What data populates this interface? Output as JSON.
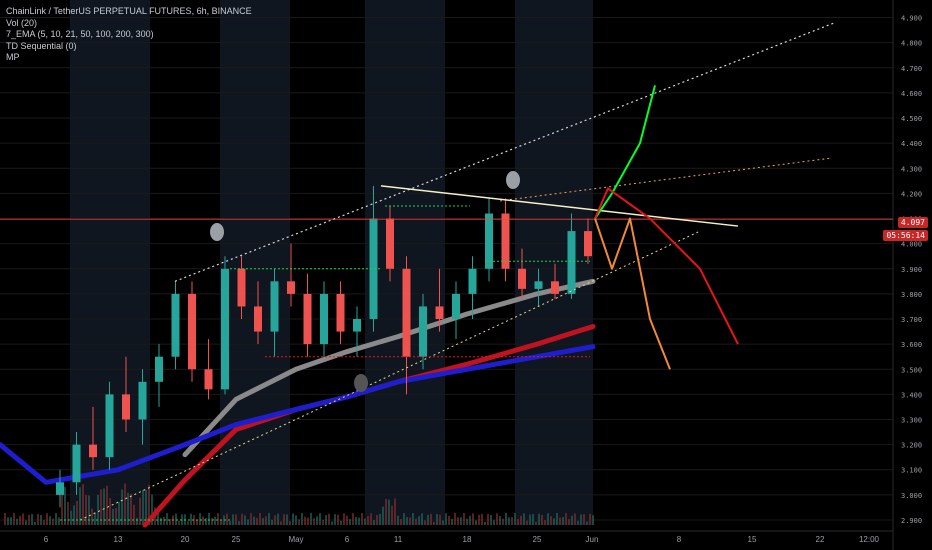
{
  "legend": {
    "title": "ChainLink / TetherUS PERPETUAL FUTURES, 6h, BINANCE",
    "studies": [
      "Vol (20)",
      "7_EMA (5, 10, 21, 50, 100, 200, 300)",
      "TD Sequential (0)",
      "MP"
    ]
  },
  "price_tag": {
    "last": "4.097",
    "countdown": "05:56:14"
  },
  "colors": {
    "background": "#000000",
    "grid": "#1a1a1a",
    "up": "#26a69a",
    "down": "#ef5350",
    "ema_gray": "#8a8a8a",
    "ema_red": "#c1121f",
    "ema_blue": "#1e1ecf",
    "projection_green": "#00ff2a",
    "projection_red": "#e5141d",
    "projection_orange": "#f0893a",
    "price_line": "#ff3b3b",
    "trendline": "#f5f0c8"
  },
  "chart_data": {
    "type": "candlestick",
    "title": "ChainLink / TetherUS PERPETUAL FUTURES, 6h, BINANCE",
    "y_axis": {
      "ticks": [
        "4.900",
        "4.800",
        "4.700",
        "4.600",
        "4.500",
        "4.400",
        "4.300",
        "4.200",
        "4.100",
        "4.000",
        "3.900",
        "3.800",
        "3.700",
        "3.600",
        "3.500",
        "3.400",
        "3.300",
        "3.200",
        "3.100",
        "3.000",
        "2.900"
      ],
      "range": [
        2.88,
        4.95
      ]
    },
    "x_axis": {
      "ticks": [
        "6",
        "13",
        "20",
        "25",
        "May",
        "6",
        "11",
        "18",
        "25",
        "Jun",
        "8",
        "15",
        "22",
        "12:00"
      ]
    },
    "last_price": 4.097,
    "ema_series": [
      {
        "color": "gray",
        "points": [
          [
            "Apr 20",
            3.16
          ],
          [
            "Apr 25",
            3.38
          ],
          [
            "May 1",
            3.5
          ],
          [
            "May 6",
            3.57
          ],
          [
            "May 11",
            3.63
          ],
          [
            "May 18",
            3.72
          ],
          [
            "May 25",
            3.8
          ],
          [
            "May 29",
            3.85
          ]
        ]
      },
      {
        "color": "red",
        "points": [
          [
            "Apr 15",
            2.88
          ],
          [
            "Apr 20",
            3.06
          ],
          [
            "Apr 25",
            3.26
          ],
          [
            "May 1",
            3.34
          ],
          [
            "May 6",
            3.39
          ],
          [
            "May 11",
            3.45
          ],
          [
            "May 18",
            3.52
          ],
          [
            "May 25",
            3.6
          ],
          [
            "May 29",
            3.67
          ]
        ]
      },
      {
        "color": "blue",
        "points": [
          [
            "Apr 1",
            3.2
          ],
          [
            "Apr 6",
            3.05
          ],
          [
            "Apr 13",
            3.1
          ],
          [
            "Apr 20",
            3.2
          ],
          [
            "Apr 25",
            3.28
          ],
          [
            "May 1",
            3.34
          ],
          [
            "May 6",
            3.39
          ],
          [
            "May 11",
            3.45
          ],
          [
            "May 18",
            3.5
          ],
          [
            "May 25",
            3.55
          ],
          [
            "May 29",
            3.59
          ]
        ]
      }
    ],
    "projections": [
      {
        "color": "green",
        "path": [
          [
            4.1
          ],
          [
            4.2
          ],
          [
            4.4
          ],
          [
            4.63
          ]
        ]
      },
      {
        "color": "red",
        "path": [
          [
            4.1
          ],
          [
            4.22
          ],
          [
            4.1
          ],
          [
            3.9
          ],
          [
            3.6
          ]
        ]
      },
      {
        "color": "orange",
        "path": [
          [
            4.1
          ],
          [
            3.9
          ],
          [
            4.1
          ],
          [
            3.7
          ],
          [
            3.5
          ]
        ]
      }
    ],
    "candles": [
      {
        "o": 3.0,
        "h": 3.1,
        "l": 2.95,
        "c": 3.05
      },
      {
        "o": 3.05,
        "h": 3.25,
        "l": 3.0,
        "c": 3.2
      },
      {
        "o": 3.2,
        "h": 3.35,
        "l": 3.1,
        "c": 3.15
      },
      {
        "o": 3.15,
        "h": 3.45,
        "l": 3.1,
        "c": 3.4
      },
      {
        "o": 3.4,
        "h": 3.55,
        "l": 3.25,
        "c": 3.3
      },
      {
        "o": 3.3,
        "h": 3.5,
        "l": 3.2,
        "c": 3.45
      },
      {
        "o": 3.45,
        "h": 3.6,
        "l": 3.35,
        "c": 3.55
      },
      {
        "o": 3.55,
        "h": 3.85,
        "l": 3.5,
        "c": 3.8
      },
      {
        "o": 3.8,
        "h": 3.85,
        "l": 3.45,
        "c": 3.5
      },
      {
        "o": 3.5,
        "h": 3.62,
        "l": 3.38,
        "c": 3.42
      },
      {
        "o": 3.42,
        "h": 3.95,
        "l": 3.4,
        "c": 3.9
      },
      {
        "o": 3.9,
        "h": 3.95,
        "l": 3.7,
        "c": 3.75
      },
      {
        "o": 3.75,
        "h": 3.85,
        "l": 3.6,
        "c": 3.65
      },
      {
        "o": 3.65,
        "h": 3.9,
        "l": 3.55,
        "c": 3.85
      },
      {
        "o": 3.85,
        "h": 4.0,
        "l": 3.75,
        "c": 3.8
      },
      {
        "o": 3.8,
        "h": 3.88,
        "l": 3.55,
        "c": 3.6
      },
      {
        "o": 3.6,
        "h": 3.85,
        "l": 3.55,
        "c": 3.8
      },
      {
        "o": 3.8,
        "h": 3.85,
        "l": 3.6,
        "c": 3.65
      },
      {
        "o": 3.65,
        "h": 3.75,
        "l": 3.55,
        "c": 3.7
      },
      {
        "o": 3.7,
        "h": 4.23,
        "l": 3.65,
        "c": 4.1
      },
      {
        "o": 4.1,
        "h": 4.15,
        "l": 3.85,
        "c": 3.9
      },
      {
        "o": 3.9,
        "h": 3.95,
        "l": 3.4,
        "c": 3.55
      },
      {
        "o": 3.55,
        "h": 3.8,
        "l": 3.5,
        "c": 3.75
      },
      {
        "o": 3.75,
        "h": 3.9,
        "l": 3.65,
        "c": 3.7
      },
      {
        "o": 3.7,
        "h": 3.85,
        "l": 3.62,
        "c": 3.8
      },
      {
        "o": 3.8,
        "h": 3.95,
        "l": 3.7,
        "c": 3.9
      },
      {
        "o": 3.9,
        "h": 4.18,
        "l": 3.85,
        "c": 4.12
      },
      {
        "o": 4.12,
        "h": 4.18,
        "l": 3.85,
        "c": 3.9
      },
      {
        "o": 3.9,
        "h": 3.98,
        "l": 3.78,
        "c": 3.82
      },
      {
        "o": 3.82,
        "h": 3.9,
        "l": 3.75,
        "c": 3.85
      },
      {
        "o": 3.85,
        "h": 3.92,
        "l": 3.78,
        "c": 3.8
      },
      {
        "o": 3.8,
        "h": 4.12,
        "l": 3.78,
        "c": 4.05
      },
      {
        "o": 4.05,
        "h": 4.1,
        "l": 3.92,
        "c": 3.95
      }
    ]
  }
}
